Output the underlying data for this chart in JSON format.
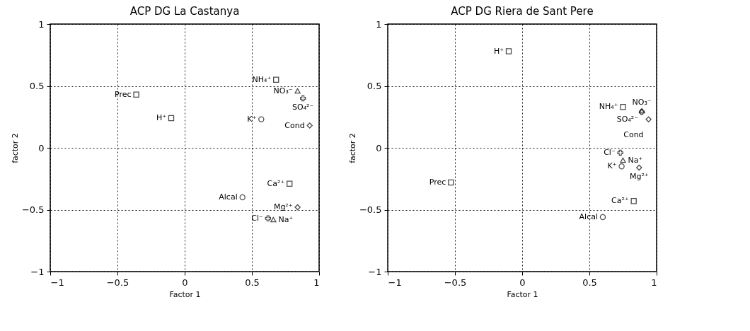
{
  "chart_data": [
    {
      "type": "scatter",
      "title": "ACP DG La Castanya",
      "xlabel": "Factor 1",
      "ylabel": "factor 2",
      "xlim": [
        -1,
        1
      ],
      "ylim": [
        -1,
        1
      ],
      "xticks": [
        -1,
        -0.5,
        0,
        0.5,
        1
      ],
      "yticks": [
        -1,
        -0.5,
        0,
        0.5,
        1
      ],
      "grid": true,
      "series": [
        {
          "name": "Prec",
          "color": "#000000",
          "marker": "square",
          "x": [
            -0.36
          ],
          "values": [
            0.43
          ]
        },
        {
          "name": "H⁺",
          "color": "#000000",
          "marker": "square",
          "x": [
            -0.1
          ],
          "values": [
            0.24
          ]
        },
        {
          "name": "NH₄⁺",
          "color": "#000000",
          "marker": "square",
          "x": [
            0.68
          ],
          "values": [
            0.55
          ]
        },
        {
          "name": "NO₃⁻",
          "color": "#000000",
          "marker": "triangle",
          "x": [
            0.84
          ],
          "values": [
            0.46
          ]
        },
        {
          "name": "SO₄²⁻",
          "color": "#000000",
          "marker": "cross",
          "x": [
            0.88
          ],
          "values": [
            0.4
          ]
        },
        {
          "name": "K⁺",
          "color": "#000000",
          "marker": "circle",
          "x": [
            0.57
          ],
          "values": [
            0.23
          ]
        },
        {
          "name": "Cond",
          "color": "#000000",
          "marker": "diamond",
          "x": [
            0.93
          ],
          "values": [
            0.18
          ]
        },
        {
          "name": "Ca²⁺",
          "color": "#000000",
          "marker": "square",
          "x": [
            0.78
          ],
          "values": [
            -0.29
          ]
        },
        {
          "name": "Alcal",
          "color": "#000000",
          "marker": "circle",
          "x": [
            0.43
          ],
          "values": [
            -0.4
          ]
        },
        {
          "name": "Mg²⁺",
          "color": "#000000",
          "marker": "diamond",
          "x": [
            0.84
          ],
          "values": [
            -0.48
          ]
        },
        {
          "name": "Cl⁻",
          "color": "#000000",
          "marker": "cross",
          "x": [
            0.62
          ],
          "values": [
            -0.57
          ]
        },
        {
          "name": "Na⁺",
          "color": "#000000",
          "marker": "triangle",
          "x": [
            0.66
          ],
          "values": [
            -0.58
          ]
        }
      ]
    },
    {
      "type": "scatter",
      "title": "ACP DG Riera de Sant Pere",
      "xlabel": "Factor 1",
      "ylabel": "factor 2",
      "xlim": [
        -1,
        1
      ],
      "ylim": [
        -1,
        1
      ],
      "xticks": [
        -1,
        -0.5,
        0,
        0.5,
        1
      ],
      "yticks": [
        -1,
        -0.5,
        0,
        0.5,
        1
      ],
      "grid": true,
      "series": [
        {
          "name": "H⁺",
          "color": "#000000",
          "marker": "square",
          "x": [
            -0.1
          ],
          "values": [
            0.78
          ]
        },
        {
          "name": "Prec",
          "color": "#000000",
          "marker": "square",
          "x": [
            -0.53
          ],
          "values": [
            -0.28
          ]
        },
        {
          "name": "NH₄⁺",
          "color": "#000000",
          "marker": "square",
          "x": [
            0.75
          ],
          "values": [
            0.33
          ]
        },
        {
          "name": "SO₄²⁻",
          "color": "#000000",
          "marker": "cross",
          "x": [
            0.89
          ],
          "values": [
            0.29
          ]
        },
        {
          "name": "NO₃⁻",
          "color": "#000000",
          "marker": "triangle",
          "x": [
            0.89
          ],
          "values": [
            0.3
          ]
        },
        {
          "name": "Cond",
          "color": "#000000",
          "marker": "diamond",
          "x": [
            0.94
          ],
          "values": [
            0.23
          ]
        },
        {
          "name": "Cl⁻",
          "color": "#000000",
          "marker": "cross",
          "x": [
            0.73
          ],
          "values": [
            -0.04
          ]
        },
        {
          "name": "Na⁺",
          "color": "#000000",
          "marker": "triangle",
          "x": [
            0.75
          ],
          "values": [
            -0.1
          ]
        },
        {
          "name": "K⁺",
          "color": "#000000",
          "marker": "circle",
          "x": [
            0.74
          ],
          "values": [
            -0.15
          ]
        },
        {
          "name": "Mg²⁺",
          "color": "#000000",
          "marker": "diamond",
          "x": [
            0.87
          ],
          "values": [
            -0.16
          ]
        },
        {
          "name": "Ca²⁺",
          "color": "#000000",
          "marker": "square",
          "x": [
            0.83
          ],
          "values": [
            -0.43
          ]
        },
        {
          "name": "Alcal",
          "color": "#000000",
          "marker": "circle",
          "x": [
            0.6
          ],
          "values": [
            -0.56
          ]
        }
      ]
    }
  ]
}
